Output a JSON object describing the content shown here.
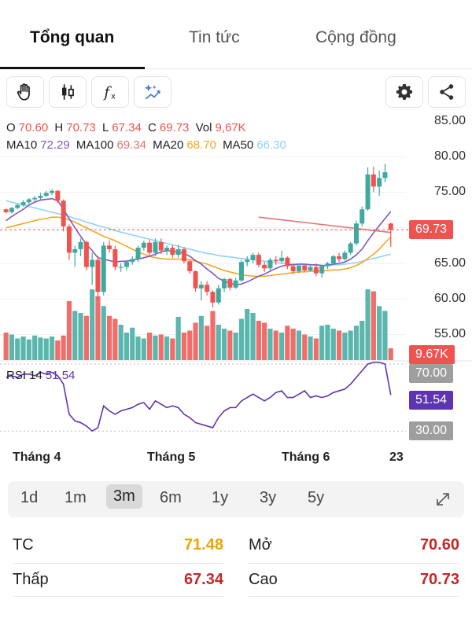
{
  "tabs": [
    {
      "label": "Tổng quan",
      "active": true
    },
    {
      "label": "Tin tức",
      "active": false
    },
    {
      "label": "Cộng đồng",
      "active": false
    }
  ],
  "toolbar": {
    "icons": [
      "hand-icon",
      "candlestick-icon",
      "function-icon",
      "magic-sparkle-icon"
    ],
    "right_icons": [
      "gear-icon",
      "share-icon"
    ]
  },
  "ohlc": {
    "o_key": "O",
    "o_val": "70.60",
    "h_key": "H",
    "h_val": "70.73",
    "l_key": "L",
    "l_val": "67.34",
    "c_key": "C",
    "c_val": "69.73",
    "vol_key": "Vol",
    "vol_val": "9,67K"
  },
  "ma": {
    "ma10_key": "MA10",
    "ma10_val": "72.29",
    "ma100_key": "MA100",
    "ma100_val": "69.34",
    "ma20_key": "MA20",
    "ma20_val": "68.70",
    "ma50_key": "MA50",
    "ma50_val": "66.30"
  },
  "price_axis": [
    "85.00",
    "80.00",
    "75.00",
    "70.00",
    "65.00",
    "60.00",
    "55.00"
  ],
  "last_price_tag": "69.73",
  "volume_tag": "9.67K",
  "rsi": {
    "label": "RSI 14",
    "value": "51.54",
    "upper": "70.00",
    "lower": "30.00"
  },
  "months": [
    "Tháng 4",
    "Tháng 5",
    "Tháng 6",
    "23"
  ],
  "periods": [
    "1d",
    "1m",
    "3m",
    "6m",
    "1y",
    "3y",
    "5y"
  ],
  "selected_period": "3m",
  "stats": {
    "tc_label": "TC",
    "tc_value": "71.48",
    "open_label": "Mở",
    "open_value": "70.60",
    "low_label": "Thấp",
    "low_value": "67.34",
    "high_label": "Cao",
    "high_value": "70.73"
  },
  "colors": {
    "up": "#3ea99f",
    "down": "#ef5350",
    "ma10": "#7e57c2",
    "ma20": "#f5a623",
    "ma50": "#8fd3f4",
    "ma100": "#e57373",
    "tc": "#e6a800",
    "red_value": "#c62828"
  },
  "chart_data": {
    "type": "candlestick",
    "ylim": [
      52,
      87
    ],
    "candles": [
      [
        72.6,
        72.7,
        72.0,
        72.2
      ],
      [
        72.2,
        72.9,
        72.0,
        72.8
      ],
      [
        72.8,
        73.4,
        72.6,
        73.2
      ],
      [
        73.2,
        73.9,
        73.0,
        73.6
      ],
      [
        73.6,
        74.2,
        73.3,
        74.0
      ],
      [
        74.0,
        74.5,
        73.7,
        74.2
      ],
      [
        74.2,
        74.9,
        74.0,
        74.5
      ],
      [
        74.5,
        75.2,
        74.3,
        74.9
      ],
      [
        74.9,
        75.4,
        74.6,
        75.2
      ],
      [
        75.2,
        75.3,
        73.5,
        73.8
      ],
      [
        73.8,
        74.0,
        69.5,
        70.2
      ],
      [
        70.2,
        70.5,
        65.5,
        66.5
      ],
      [
        66.5,
        67.5,
        64.5,
        67.0
      ],
      [
        67.0,
        68.5,
        66.0,
        68.0
      ],
      [
        68.0,
        68.2,
        64.0,
        64.5
      ],
      [
        64.5,
        66.5,
        62.0,
        65.5
      ],
      [
        65.5,
        66.0,
        60.0,
        61.0
      ],
      [
        61.0,
        68.0,
        60.5,
        67.5
      ],
      [
        67.5,
        68.2,
        66.5,
        67.0
      ],
      [
        67.0,
        67.5,
        64.0,
        64.5
      ],
      [
        64.5,
        65.0,
        63.8,
        64.5
      ],
      [
        64.5,
        65.5,
        64.0,
        65.2
      ],
      [
        65.2,
        66.0,
        64.8,
        65.6
      ],
      [
        65.6,
        67.5,
        65.2,
        67.2
      ],
      [
        67.2,
        68.2,
        66.8,
        67.9
      ],
      [
        67.9,
        68.3,
        66.0,
        66.5
      ],
      [
        66.5,
        68.5,
        66.0,
        68.0
      ],
      [
        68.0,
        68.5,
        66.3,
        66.8
      ],
      [
        66.8,
        67.5,
        66.2,
        67.2
      ],
      [
        67.2,
        67.6,
        65.8,
        66.2
      ],
      [
        66.2,
        67.6,
        65.8,
        67.0
      ],
      [
        67.0,
        67.3,
        65.0,
        65.3
      ],
      [
        65.3,
        65.5,
        63.5,
        63.9
      ],
      [
        63.9,
        64.0,
        61.0,
        61.5
      ],
      [
        61.5,
        62.5,
        59.8,
        62.0
      ],
      [
        62.0,
        62.5,
        60.5,
        61.0
      ],
      [
        61.0,
        61.2,
        58.8,
        59.5
      ],
      [
        59.5,
        62.0,
        59.2,
        61.5
      ],
      [
        61.5,
        63.0,
        61.0,
        62.8
      ],
      [
        62.8,
        63.0,
        61.2,
        61.6
      ],
      [
        61.6,
        63.0,
        61.4,
        62.6
      ],
      [
        62.6,
        65.5,
        62.4,
        65.2
      ],
      [
        65.2,
        66.0,
        64.6,
        65.5
      ],
      [
        65.5,
        66.5,
        65.0,
        66.2
      ],
      [
        66.2,
        66.5,
        64.5,
        64.8
      ],
      [
        64.8,
        65.2,
        63.8,
        64.3
      ],
      [
        64.3,
        65.8,
        64.0,
        65.5
      ],
      [
        65.5,
        66.0,
        64.8,
        65.3
      ],
      [
        65.3,
        66.8,
        65.0,
        65.8
      ],
      [
        65.8,
        66.0,
        64.2,
        64.6
      ],
      [
        64.6,
        64.9,
        63.5,
        63.9
      ],
      [
        63.9,
        65.0,
        63.6,
        64.7
      ],
      [
        64.7,
        65.0,
        63.8,
        64.0
      ],
      [
        64.0,
        64.8,
        63.9,
        64.5
      ],
      [
        64.5,
        65.0,
        63.2,
        63.6
      ],
      [
        63.6,
        64.8,
        63.0,
        64.6
      ],
      [
        64.6,
        65.2,
        64.2,
        65.0
      ],
      [
        65.0,
        66.2,
        64.8,
        66.0
      ],
      [
        66.0,
        66.5,
        65.2,
        65.6
      ],
      [
        65.6,
        66.8,
        65.4,
        66.5
      ],
      [
        66.5,
        68.0,
        66.2,
        67.8
      ],
      [
        67.8,
        71.0,
        67.5,
        70.6
      ],
      [
        70.6,
        73.0,
        70.2,
        72.6
      ],
      [
        72.6,
        78.5,
        72.4,
        77.5
      ],
      [
        77.5,
        78.6,
        75.0,
        75.8
      ],
      [
        75.8,
        78.0,
        74.5,
        77.0
      ],
      [
        77.0,
        79.0,
        76.4,
        77.8
      ],
      [
        70.6,
        70.73,
        67.34,
        69.73
      ]
    ],
    "volumes": [
      28,
      26,
      22,
      24,
      21,
      25,
      23,
      22,
      24,
      20,
      25,
      60,
      50,
      48,
      45,
      72,
      65,
      55,
      45,
      42,
      36,
      28,
      33,
      24,
      22,
      28,
      25,
      26,
      24,
      22,
      44,
      28,
      30,
      38,
      45,
      35,
      50,
      36,
      32,
      30,
      28,
      42,
      52,
      48,
      40,
      38,
      32,
      30,
      28,
      35,
      32,
      30,
      26,
      24,
      22,
      35,
      36,
      32,
      30,
      28,
      30,
      35,
      40,
      72,
      70,
      55,
      50,
      12
    ],
    "ma10": [
      71.0,
      71.6,
      72.1,
      72.6,
      73.2,
      73.6,
      73.9,
      74.0,
      74.1,
      73.8,
      72.6,
      71.3,
      70.0,
      68.8,
      67.7,
      66.8,
      65.8,
      65.6,
      65.4,
      65.2,
      65.3,
      65.3,
      65.5,
      65.6,
      65.8,
      66.0,
      66.3,
      66.6,
      66.8,
      66.7,
      66.6,
      66.4,
      66.0,
      65.4,
      64.9,
      64.2,
      63.6,
      62.9,
      62.5,
      62.2,
      62.0,
      62.1,
      62.4,
      62.8,
      63.2,
      63.5,
      63.9,
      64.3,
      64.6,
      64.8,
      64.8,
      64.9,
      64.9,
      64.8,
      64.8,
      64.7,
      64.7,
      64.9,
      65.0,
      65.2,
      65.6,
      66.2,
      67.0,
      68.2,
      69.3,
      70.3,
      71.3,
      72.29
    ],
    "ma20": [
      70.0,
      70.2,
      70.4,
      70.6,
      70.8,
      71.0,
      71.2,
      71.3,
      71.5,
      71.5,
      71.4,
      71.1,
      70.8,
      70.4,
      70.0,
      69.6,
      69.2,
      68.8,
      68.5,
      68.2,
      67.8,
      67.4,
      67.0,
      66.6,
      66.3,
      66.0,
      65.8,
      65.7,
      65.6,
      65.6,
      65.6,
      65.6,
      65.5,
      65.3,
      65.1,
      64.9,
      64.6,
      64.3,
      64.0,
      63.8,
      63.6,
      63.4,
      63.3,
      63.2,
      63.2,
      63.2,
      63.3,
      63.4,
      63.5,
      63.6,
      63.7,
      63.8,
      63.8,
      63.9,
      63.9,
      64.0,
      64.0,
      64.1,
      64.1,
      64.2,
      64.4,
      64.7,
      65.1,
      65.7,
      66.3,
      67.0,
      67.9,
      68.7
    ],
    "ma50": [
      73.8,
      73.6,
      73.4,
      73.2,
      73.0,
      72.8,
      72.6,
      72.4,
      72.2,
      72.0,
      71.8,
      71.6,
      71.3,
      71.1,
      70.8,
      70.6,
      70.3,
      70.1,
      69.9,
      69.6,
      69.4,
      69.2,
      69.0,
      68.8,
      68.6,
      68.4,
      68.2,
      68.0,
      67.8,
      67.6,
      67.4,
      67.2,
      67.0,
      66.8,
      66.6,
      66.4,
      66.3,
      66.1,
      66.0,
      65.9,
      65.8,
      65.7,
      65.6,
      65.5,
      65.4,
      65.3,
      65.2,
      65.1,
      65.0,
      65.0,
      64.9,
      64.9,
      64.8,
      64.8,
      64.8,
      64.7,
      64.7,
      64.8,
      64.8,
      64.9,
      65.0,
      65.1,
      65.3,
      65.5,
      65.7,
      65.9,
      66.1,
      66.3
    ],
    "ma100_segment": [
      [
        44,
        71.5
      ],
      [
        67,
        69.34
      ]
    ],
    "rsi_series": [
      62,
      63,
      62,
      64,
      64,
      63,
      65,
      64,
      65,
      63,
      58,
      40,
      36,
      35,
      33,
      30,
      32,
      45,
      42,
      40,
      42,
      43,
      44,
      46,
      47,
      43,
      48,
      46,
      44,
      45,
      44,
      40,
      38,
      35,
      34,
      33,
      32,
      38,
      42,
      44,
      44,
      48,
      50,
      52,
      50,
      48,
      50,
      53,
      54,
      50,
      50,
      52,
      54,
      50,
      51,
      50,
      51,
      53,
      54,
      55,
      58,
      62,
      66,
      70,
      71,
      71,
      70,
      51.54
    ]
  }
}
